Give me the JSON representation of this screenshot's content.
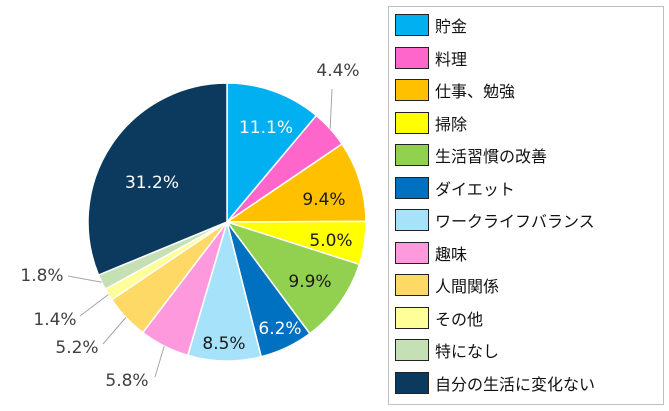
{
  "chart_data": {
    "type": "pie",
    "title": "",
    "unit": "%",
    "legend_position": "right",
    "start_angle_deg": 0,
    "direction": "clockwise",
    "slices": [
      {
        "label": "貯金",
        "value": 11.1,
        "value_label": "11.1%",
        "color": "#00b0f0"
      },
      {
        "label": "料理",
        "value": 4.4,
        "value_label": "4.4%",
        "color": "#ff66cc"
      },
      {
        "label": "仕事、勉強",
        "value": 9.4,
        "value_label": "9.4%",
        "color": "#ffc000"
      },
      {
        "label": "掃除",
        "value": 5.0,
        "value_label": "5.0%",
        "color": "#ffff00"
      },
      {
        "label": "生活習慣の改善",
        "value": 9.9,
        "value_label": "9.9%",
        "color": "#92d050"
      },
      {
        "label": "ダイエット",
        "value": 6.2,
        "value_label": "6.2%",
        "color": "#0070c0"
      },
      {
        "label": "ワークライフバランス",
        "value": 8.5,
        "value_label": "8.5%",
        "color": "#a6e3fb"
      },
      {
        "label": "趣味",
        "value": 5.8,
        "value_label": "5.8%",
        "color": "#ff99dd"
      },
      {
        "label": "人間関係",
        "value": 5.2,
        "value_label": "5.2%",
        "color": "#ffd966"
      },
      {
        "label": "その他",
        "value": 1.4,
        "value_label": "1.4%",
        "color": "#ffff99"
      },
      {
        "label": "特になし",
        "value": 1.8,
        "value_label": "1.8%",
        "color": "#c5e0b4"
      },
      {
        "label": "自分の生活に変化ない",
        "value": 31.2,
        "value_label": "31.2%",
        "color": "#0b3a5e"
      }
    ]
  }
}
